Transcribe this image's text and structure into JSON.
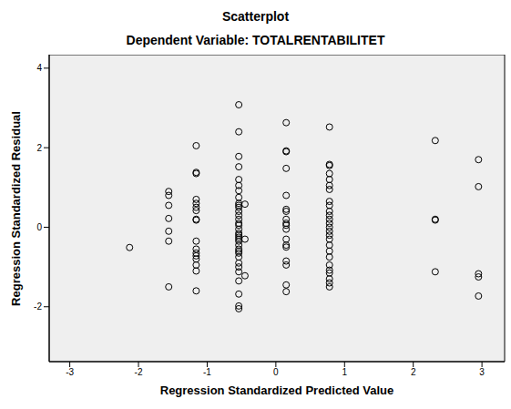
{
  "chart_data": {
    "type": "scatter",
    "title": "Scatterplot",
    "subtitle": "Dependent Variable: TOTALRENTABILITET",
    "x_label": "Regression Standardized Predicted Value",
    "y_label": "Regression Standardized Residual",
    "color": "#000000",
    "marker": "circle",
    "grid": false,
    "xlim": [
      -3.3,
      3.33
    ],
    "ylim": [
      -3.38,
      4.34
    ],
    "xticks": [
      -3,
      -2,
      -1,
      0,
      1,
      2,
      3
    ],
    "yticks": [
      -2,
      0,
      2,
      4
    ],
    "x": [
      -2.13,
      -1.56,
      -1.56,
      -1.56,
      -1.56,
      -1.56,
      -1.56,
      -1.56,
      -1.16,
      -1.16,
      -1.16,
      -1.16,
      -1.16,
      -1.16,
      -1.16,
      -1.16,
      -1.16,
      -1.16,
      -1.16,
      -1.16,
      -1.16,
      -1.16,
      -1.16,
      -1.16,
      -1.16,
      -0.54,
      -0.54,
      -0.54,
      -0.54,
      -0.54,
      -0.54,
      -0.54,
      -0.54,
      -0.54,
      -0.54,
      -0.54,
      -0.54,
      -0.54,
      -0.54,
      -0.54,
      -0.54,
      -0.54,
      -0.54,
      -0.54,
      -0.54,
      -0.54,
      -0.54,
      -0.54,
      -0.54,
      -0.54,
      -0.54,
      -0.54,
      -0.54,
      -0.54,
      -0.54,
      -0.54,
      -0.54,
      -0.54,
      -0.54,
      -0.45,
      -0.45,
      -0.45,
      0.15,
      0.15,
      0.15,
      0.15,
      0.15,
      0.15,
      0.15,
      0.15,
      0.15,
      0.15,
      0.15,
      0.15,
      0.15,
      0.15,
      0.15,
      0.15,
      0.15,
      0.15,
      0.78,
      0.78,
      0.78,
      0.78,
      0.78,
      0.78,
      0.78,
      0.78,
      0.78,
      0.78,
      0.78,
      0.78,
      0.78,
      0.78,
      0.78,
      0.78,
      0.78,
      0.78,
      0.78,
      0.78,
      0.78,
      0.78,
      0.78,
      0.78,
      0.78,
      0.78,
      2.32,
      2.32,
      2.32,
      2.32,
      2.95,
      2.95,
      2.95,
      2.95,
      2.95
    ],
    "y": [
      -0.51,
      0.9,
      0.8,
      0.55,
      0.22,
      -0.1,
      -0.35,
      -1.5,
      2.05,
      1.38,
      1.35,
      0.7,
      0.6,
      0.5,
      0.42,
      0.2,
      0.18,
      -0.35,
      -0.55,
      -0.65,
      -0.72,
      -0.8,
      -0.95,
      -1.1,
      -1.6,
      3.08,
      2.4,
      1.78,
      1.52,
      1.2,
      1.05,
      0.92,
      0.75,
      0.6,
      0.55,
      0.5,
      0.4,
      0.3,
      0.2,
      0.1,
      0.05,
      -0.05,
      -0.15,
      -0.2,
      -0.25,
      -0.3,
      -0.35,
      -0.45,
      -0.55,
      -0.65,
      -0.75,
      -0.9,
      -1.0,
      -1.12,
      -1.35,
      -1.68,
      -1.98,
      -2.05,
      -0.6,
      0.58,
      -0.3,
      -1.22,
      2.63,
      1.92,
      1.9,
      1.48,
      0.8,
      0.45,
      0.4,
      0.2,
      0.1,
      0.05,
      -0.05,
      -0.3,
      -0.45,
      -0.5,
      -0.85,
      -0.95,
      -1.45,
      -1.62,
      2.52,
      1.58,
      1.55,
      1.35,
      1.2,
      1.05,
      0.95,
      0.65,
      0.55,
      0.4,
      0.3,
      0.2,
      0.1,
      0.0,
      -0.1,
      -0.2,
      -0.3,
      -0.45,
      -0.6,
      -0.75,
      -0.95,
      -1.08,
      -1.15,
      -1.3,
      -1.4,
      -1.5,
      2.18,
      0.2,
      0.18,
      -1.12,
      1.7,
      1.02,
      -1.17,
      -1.25,
      -1.73
    ]
  }
}
